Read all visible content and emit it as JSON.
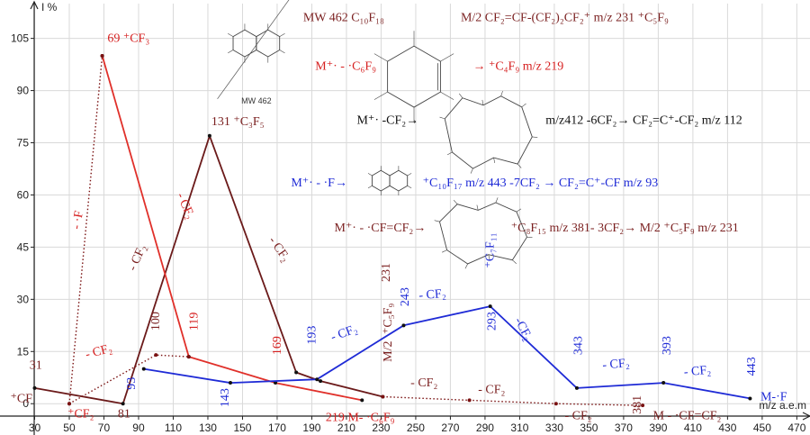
{
  "chart_data": {
    "type": "line",
    "xlabel": "m/z a.e.m",
    "ylabel": "I %",
    "xlim": [
      10,
      475
    ],
    "ylim": [
      -9,
      115
    ],
    "x_ticks": [
      30,
      50,
      70,
      90,
      110,
      130,
      150,
      170,
      190,
      210,
      230,
      250,
      270,
      290,
      310,
      330,
      350,
      370,
      390,
      410,
      430,
      450,
      470
    ],
    "y_ticks": [
      0,
      15,
      30,
      45,
      60,
      75,
      90,
      105
    ],
    "grid": true,
    "colors": {
      "series_dark": "#6b1a1a",
      "series_red": "#e0302a",
      "series_blue": "#1f2bd6",
      "series_dotted": "#7a1212",
      "annotation_dark": "#7a1f1f",
      "annotation_red": "#d62020",
      "annotation_blue": "#1f2bd6",
      "annotation_black": "#111111",
      "grid": "#d9d9d9"
    },
    "series": [
      {
        "key": "dark",
        "style": "solid",
        "points": [
          [
            30,
            4.5
          ],
          [
            81,
            0
          ],
          [
            131,
            77
          ],
          [
            181,
            9
          ],
          [
            195,
            6.5
          ],
          [
            231,
            2
          ]
        ]
      },
      {
        "key": "red",
        "style": "solid",
        "points": [
          [
            69,
            100
          ],
          [
            119,
            13.5
          ],
          [
            169,
            6
          ],
          [
            219,
            1
          ]
        ]
      },
      {
        "key": "blue",
        "style": "solid",
        "points": [
          [
            93,
            10
          ],
          [
            143,
            6
          ],
          [
            193,
            7
          ],
          [
            243,
            22.5
          ],
          [
            293,
            28
          ],
          [
            343,
            4.5
          ],
          [
            393,
            6
          ],
          [
            443,
            1.5
          ]
        ]
      },
      {
        "key": "dotted_low",
        "style": "dotted",
        "points": [
          [
            50,
            0
          ],
          [
            100,
            14
          ],
          [
            119,
            13.5
          ]
        ]
      },
      {
        "key": "dotted_high",
        "style": "dotted",
        "points": [
          [
            50,
            0
          ],
          [
            69,
            100
          ]
        ]
      },
      {
        "key": "dotted_tail",
        "style": "dotted",
        "points": [
          [
            231,
            2
          ],
          [
            281,
            1
          ],
          [
            331,
            0
          ],
          [
            381,
            -0.5
          ]
        ]
      }
    ],
    "annotations": [
      {
        "text": "69 ⁺CF₃",
        "x": 72,
        "y": 104,
        "color": "red",
        "rotate": 0,
        "size": 14
      },
      {
        "text": "131 ⁺C₃F₅",
        "x": 132,
        "y": 80,
        "color": "dark",
        "rotate": 0,
        "size": 14
      },
      {
        "text": "31",
        "x": 27,
        "y": 10,
        "color": "dark",
        "rotate": 0,
        "size": 14
      },
      {
        "text": "⁺CF",
        "x": 16,
        "y": 0.5,
        "color": "dark",
        "rotate": 0,
        "size": 14
      },
      {
        "text": "⁺CF₂",
        "x": 49,
        "y": -4,
        "color": "red",
        "rotate": 0,
        "size": 14
      },
      {
        "text": "81",
        "x": 78,
        "y": -4,
        "color": "dark",
        "rotate": 0,
        "size": 14
      },
      {
        "text": "93",
        "x": 88,
        "y": 4,
        "color": "blue",
        "rotate": -90,
        "size": 14
      },
      {
        "text": "100",
        "x": 102,
        "y": 21,
        "color": "dark",
        "rotate": -90,
        "size": 14
      },
      {
        "text": "119",
        "x": 124,
        "y": 21,
        "color": "red",
        "rotate": -90,
        "size": 14
      },
      {
        "text": "143",
        "x": 142,
        "y": -1,
        "color": "blue",
        "rotate": -90,
        "size": 14
      },
      {
        "text": "169",
        "x": 172,
        "y": 14,
        "color": "red",
        "rotate": -90,
        "size": 14
      },
      {
        "text": "193",
        "x": 192,
        "y": 17,
        "color": "blue",
        "rotate": -90,
        "size": 14
      },
      {
        "text": "231",
        "x": 235,
        "y": 35,
        "color": "dark",
        "rotate": -90,
        "size": 14
      },
      {
        "text": "⁺C₅F₉",
        "x": 236,
        "y": 20,
        "color": "dark",
        "rotate": -90,
        "size": 14
      },
      {
        "text": "M/2",
        "x": 236,
        "y": 12,
        "color": "dark",
        "rotate": -90,
        "size": 14
      },
      {
        "text": "243",
        "x": 246,
        "y": 28,
        "color": "blue",
        "rotate": -90,
        "size": 14
      },
      {
        "text": "⁺C₇F₁₁",
        "x": 295,
        "y": 39,
        "color": "blue",
        "rotate": -90,
        "size": 14
      },
      {
        "text": "293",
        "x": 296,
        "y": 21,
        "color": "blue",
        "rotate": -90,
        "size": 14
      },
      {
        "text": "343",
        "x": 346,
        "y": 14,
        "color": "blue",
        "rotate": -90,
        "size": 14
      },
      {
        "text": "393",
        "x": 397,
        "y": 14,
        "color": "blue",
        "rotate": -90,
        "size": 14
      },
      {
        "text": "443",
        "x": 446,
        "y": 8,
        "color": "blue",
        "rotate": -90,
        "size": 14
      },
      {
        "text": "M-·F",
        "x": 449,
        "y": 1,
        "color": "blue",
        "rotate": 0,
        "size": 14
      },
      {
        "text": "219 M- ·C₆F₉",
        "x": 198,
        "y": -5,
        "color": "red",
        "rotate": 0,
        "size": 14
      },
      {
        "text": "381",
        "x": 380,
        "y": -3,
        "color": "dark",
        "rotate": -90,
        "size": 14
      },
      {
        "text": "M - ·CF=CF₂",
        "x": 387,
        "y": -4.5,
        "color": "dark",
        "rotate": 0,
        "size": 14
      },
      {
        "text": "- CF₂",
        "x": 60,
        "y": 13,
        "color": "red",
        "rotate": -15,
        "size": 14
      },
      {
        "text": "- ·F",
        "x": 56,
        "y": 50,
        "color": "red",
        "rotate": -80,
        "size": 14
      },
      {
        "text": "- CF₂",
        "x": 112,
        "y": 60,
        "color": "red",
        "rotate": 66,
        "size": 14
      },
      {
        "text": "- CF₂",
        "x": 88,
        "y": 38,
        "color": "dark",
        "rotate": -66,
        "size": 14
      },
      {
        "text": "- CF₂",
        "x": 165,
        "y": 47,
        "color": "dark",
        "rotate": 55,
        "size": 14
      },
      {
        "text": "- CF₂",
        "x": 202,
        "y": 18,
        "color": "blue",
        "rotate": -20,
        "size": 14
      },
      {
        "text": "- CF₂",
        "x": 252,
        "y": 30,
        "color": "blue",
        "rotate": -5,
        "size": 14
      },
      {
        "text": "-CF₂",
        "x": 307,
        "y": 24,
        "color": "blue",
        "rotate": 62,
        "size": 14
      },
      {
        "text": "- CF₂",
        "x": 358,
        "y": 10,
        "color": "blue",
        "rotate": -5,
        "size": 14
      },
      {
        "text": "- CF₂",
        "x": 405,
        "y": 8,
        "color": "blue",
        "rotate": -5,
        "size": 14
      },
      {
        "text": "- CF₂",
        "x": 247,
        "y": 5,
        "color": "dark",
        "rotate": 0,
        "size": 14
      },
      {
        "text": "- CF₂",
        "x": 286,
        "y": 3,
        "color": "dark",
        "rotate": 0,
        "size": 14
      },
      {
        "text": "- CF₂",
        "x": 336,
        "y": -4.5,
        "color": "dark",
        "rotate": 0,
        "size": 14
      },
      {
        "text": "MW 462  C₁₀F₁₈",
        "x": 185,
        "y": 110,
        "color": "dark",
        "rotate": 0,
        "size": 14
      },
      {
        "text": "M/2   CF₂=CF-(CF₂)₂CF₂⁺ m/z 231 ⁺C₅F₉",
        "x": 276,
        "y": 110,
        "color": "dark",
        "rotate": 0,
        "size": 14
      },
      {
        "text": "M⁺· - ·C₆F₉",
        "x": 192,
        "y": 96,
        "color": "red",
        "rotate": 0,
        "size": 14
      },
      {
        "text": "→ ⁺C₄F₉ m/z 219",
        "x": 283,
        "y": 96,
        "color": "red",
        "rotate": 0,
        "size": 14
      },
      {
        "text": "M⁺· -CF₂→",
        "x": 216,
        "y": 80.5,
        "color": "black",
        "rotate": 0,
        "size": 14
      },
      {
        "text": "m/z412 -6CF₂→ CF₂=C⁺-CF₂ m/z 112",
        "x": 325,
        "y": 80.5,
        "color": "black",
        "rotate": 0,
        "size": 14
      },
      {
        "text": "M⁺· - ·F→",
        "x": 178,
        "y": 62.5,
        "color": "blue",
        "rotate": 0,
        "size": 14
      },
      {
        "text": "⁺C₁₀F₁₇ m/z 443  -7CF₂  → CF₂=C⁺-CF m/z 93",
        "x": 254,
        "y": 62.5,
        "color": "blue",
        "rotate": 0,
        "size": 14
      },
      {
        "text": "M⁺· - ·CF=CF₂→",
        "x": 203,
        "y": 49.5,
        "color": "dark",
        "rotate": 0,
        "size": 14
      },
      {
        "text": "⁺C₈F₁₅ m/z 381- 3CF₂→ M/2 ⁺C₅F₉ m/z 231",
        "x": 305,
        "y": 49.5,
        "color": "dark",
        "rotate": 0,
        "size": 14
      }
    ],
    "structures": [
      {
        "kind": "decalin",
        "x": 133,
        "y": 118,
        "w": 50,
        "h": 32,
        "label": "MW 462"
      },
      {
        "kind": "hexene",
        "x": 228,
        "y": 105,
        "w": 42,
        "h": 22
      },
      {
        "kind": "macrocycle",
        "x": 262,
        "y": 91,
        "w": 60,
        "h": 26
      },
      {
        "kind": "decalin",
        "x": 216,
        "y": 74,
        "w": 38,
        "h": 22
      },
      {
        "kind": "macrocycle",
        "x": 259,
        "y": 60,
        "w": 60,
        "h": 22
      }
    ]
  }
}
